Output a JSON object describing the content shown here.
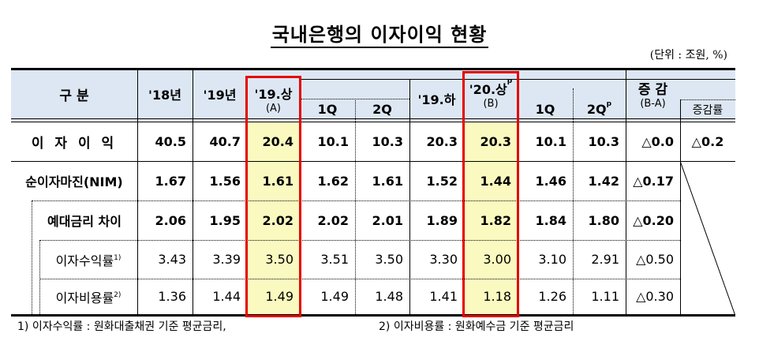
{
  "title": "국내은행의 이자이익 현황",
  "unit": "(단위 : 조원, %)",
  "header": {
    "category": "구 분",
    "cols": [
      {
        "label": "'18년"
      },
      {
        "label": "'19년"
      },
      {
        "label": "'19.상",
        "sub": "(A)"
      },
      {
        "label": "1Q"
      },
      {
        "label": "2Q"
      },
      {
        "label": "'19.하"
      },
      {
        "label": "'20.상",
        "sup": "p",
        "sub": "(B)"
      },
      {
        "label": "1Q"
      },
      {
        "label": "2Q",
        "sup": "p"
      },
      {
        "label": "증 감",
        "sub": "(B-A)"
      },
      {
        "label": "증감률"
      }
    ]
  },
  "rows": [
    {
      "label": "이 자 이 익",
      "values": [
        "40.5",
        "40.7",
        "20.4",
        "10.1",
        "10.3",
        "20.3",
        "20.3",
        "10.1",
        "10.3",
        "△0.0",
        "△0.2"
      ]
    },
    {
      "label": "순이자마진(NIM)",
      "values": [
        "1.67",
        "1.56",
        "1.61",
        "1.62",
        "1.61",
        "1.52",
        "1.44",
        "1.46",
        "1.42",
        "△0.17",
        ""
      ]
    },
    {
      "label": "예대금리 차이",
      "values": [
        "2.06",
        "1.95",
        "2.02",
        "2.02",
        "2.01",
        "1.89",
        "1.82",
        "1.84",
        "1.80",
        "△0.20",
        ""
      ]
    },
    {
      "label": "이자수익률",
      "sup": "1)",
      "values": [
        "3.43",
        "3.39",
        "3.50",
        "3.51",
        "3.50",
        "3.30",
        "3.00",
        "3.10",
        "2.91",
        "△0.50",
        ""
      ]
    },
    {
      "label": "이자비용률",
      "sup": "2)",
      "values": [
        "1.36",
        "1.44",
        "1.49",
        "1.49",
        "1.48",
        "1.41",
        "1.18",
        "1.26",
        "1.11",
        "△0.30",
        ""
      ]
    }
  ],
  "notes": [
    "1) 이자수익률 : 원화대출채권 기준 평균금리,",
    "2) 이자비용률 : 원화예수금 기준 평균금리"
  ],
  "colors": {
    "header_bg": "#dde7f3",
    "highlight": "#fafac0",
    "highlight_border": "#e60000"
  }
}
